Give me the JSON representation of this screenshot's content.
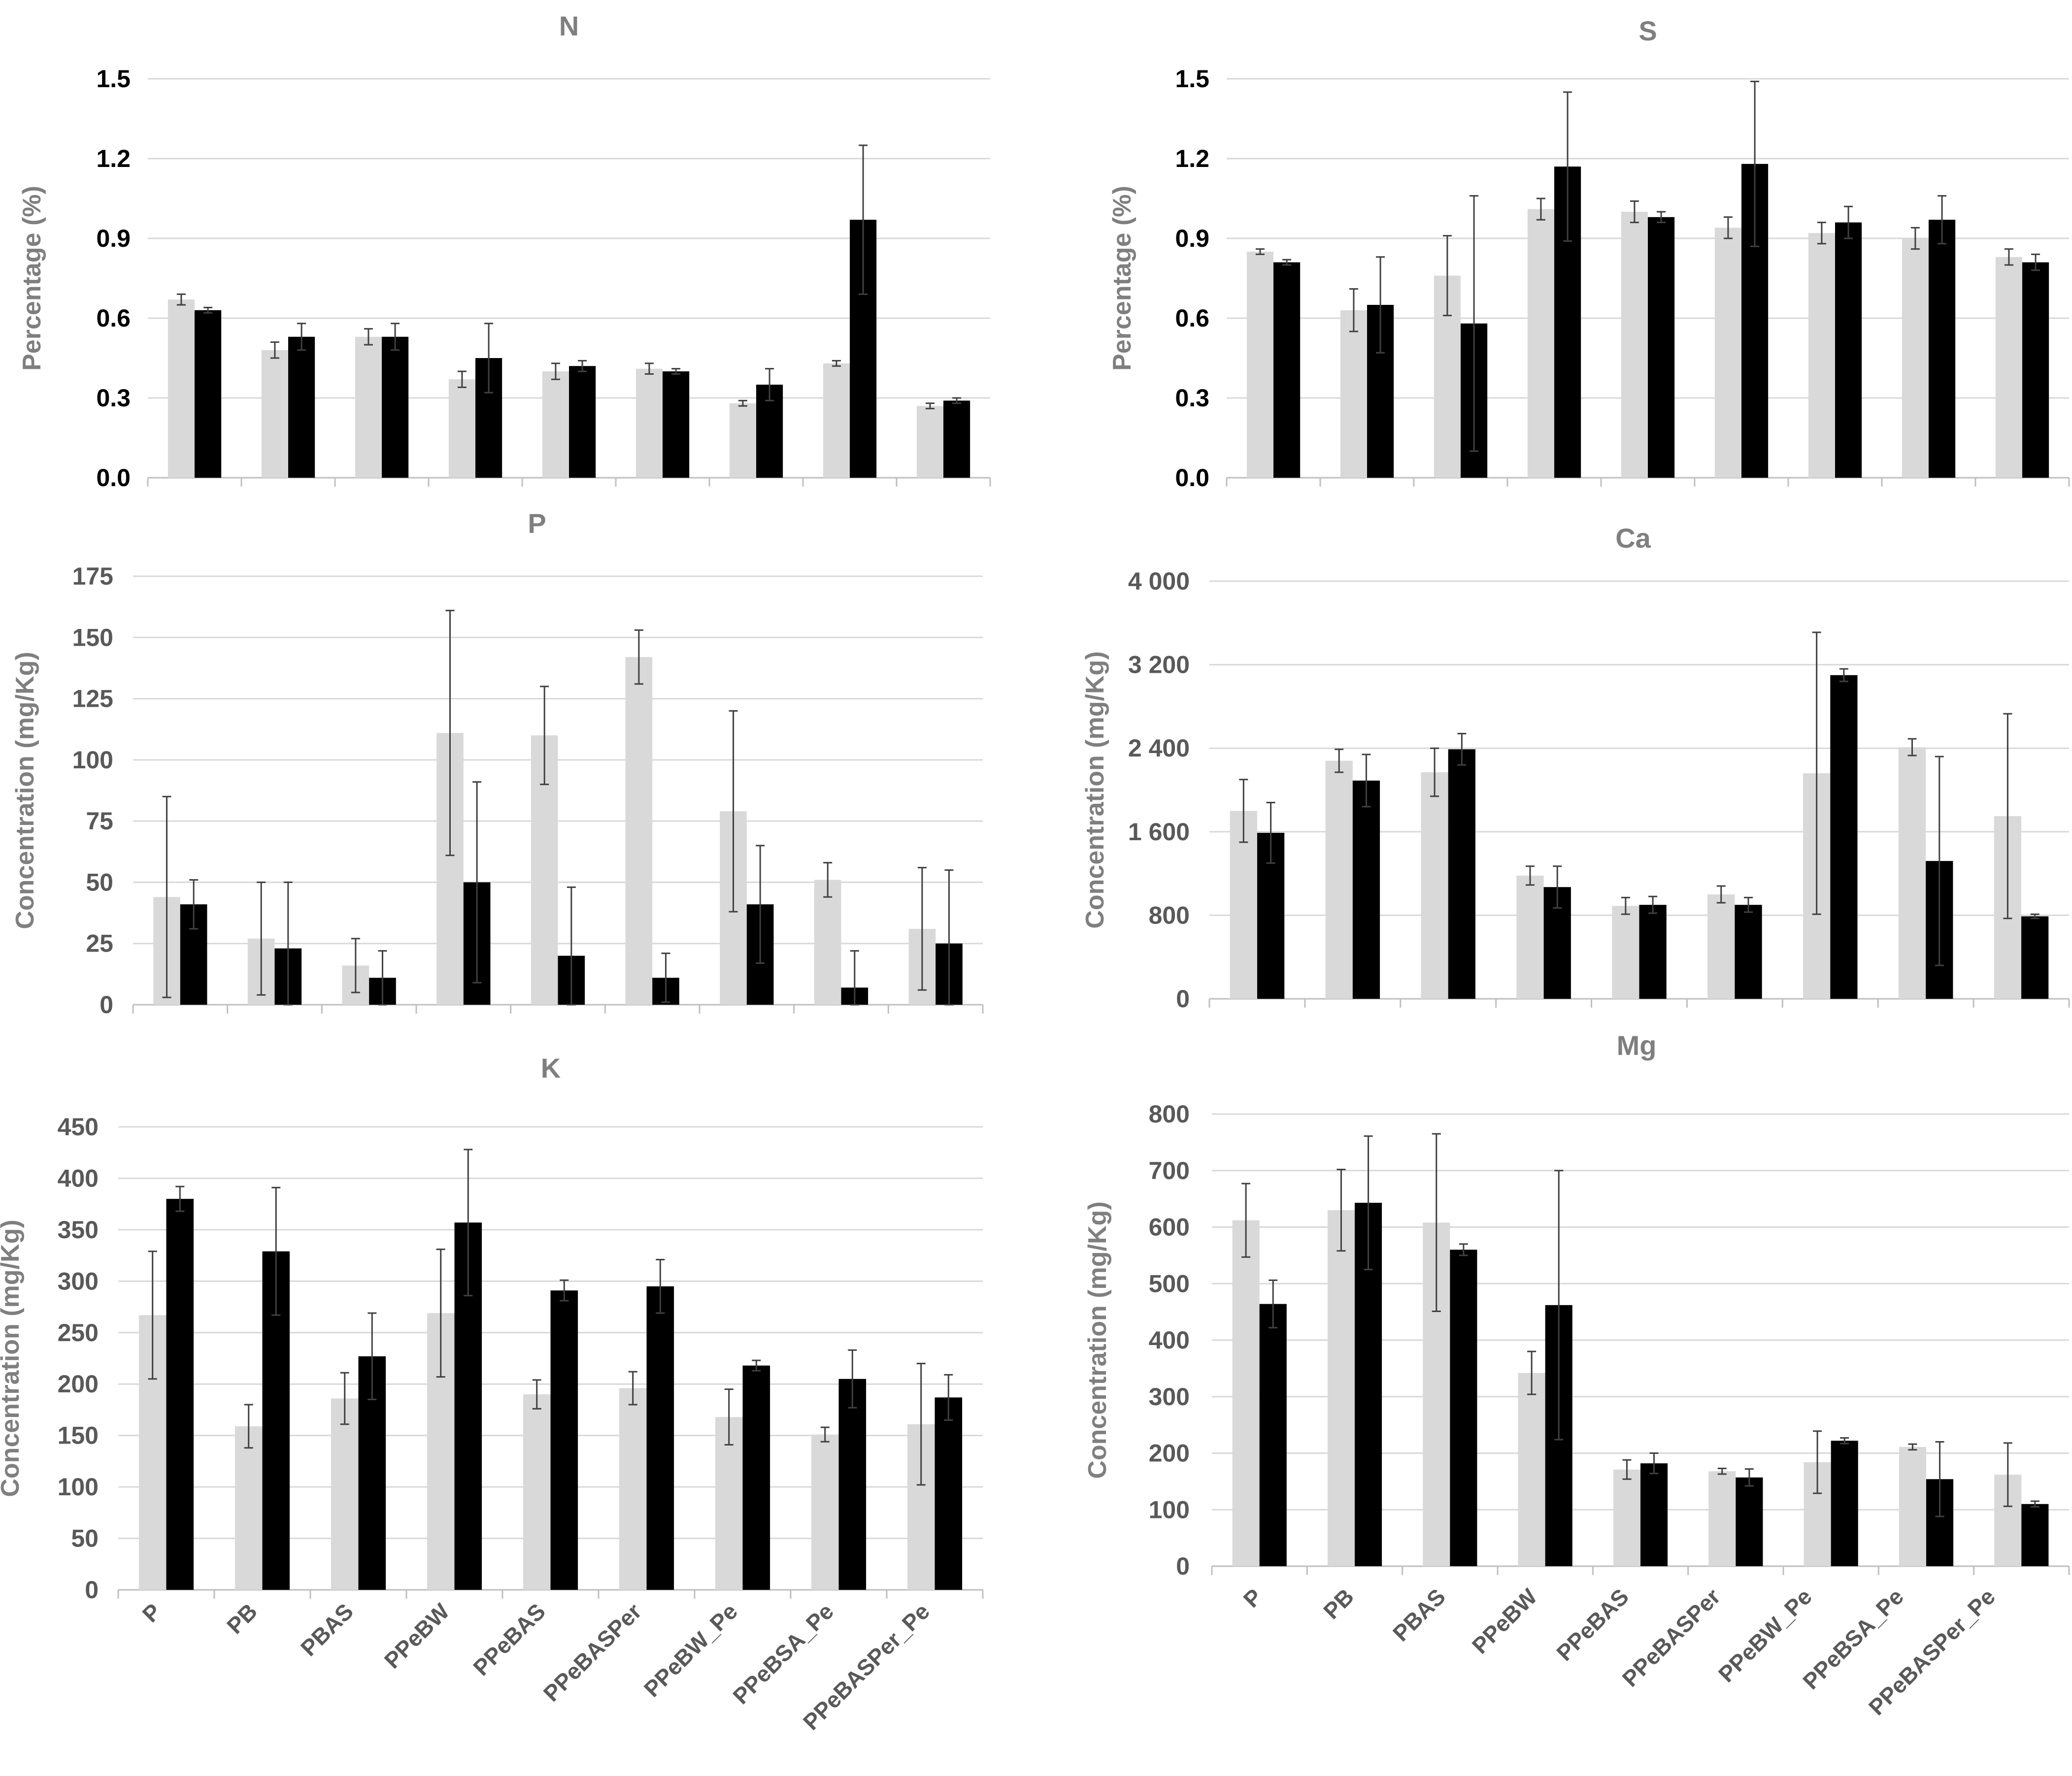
{
  "colors": {
    "series_a": "#d9d9d9",
    "series_b": "#000000",
    "grid": "#d9d9d9",
    "axis": "#bfbfbf",
    "error": "#404040",
    "text": "#7f7f7f",
    "category": "#595959"
  },
  "chart_data": [
    {
      "type": "bar",
      "title": "N",
      "ylabel": "Percentage (%)",
      "ylim": [
        0,
        1.5
      ],
      "yticks": [
        "0.0",
        "0.3",
        "0.6",
        "0.9",
        "1.2",
        "1.5"
      ],
      "tick_color": "#000000",
      "categories": [
        "P",
        "PB",
        "PBAS",
        "PPeBW",
        "PPeBAS",
        "PPeBASPer",
        "PPeBW_Pe",
        "PPeBSA_Pe",
        "PPeBASPer_Pe"
      ],
      "series": [
        {
          "values": [
            0.67,
            0.48,
            0.53,
            0.37,
            0.4,
            0.41,
            0.28,
            0.43,
            0.27
          ],
          "errors": [
            0.02,
            0.03,
            0.03,
            0.03,
            0.03,
            0.02,
            0.01,
            0.01,
            0.01
          ]
        },
        {
          "values": [
            0.63,
            0.53,
            0.53,
            0.45,
            0.42,
            0.4,
            0.35,
            0.97,
            0.29
          ],
          "errors": [
            0.01,
            0.05,
            0.05,
            0.13,
            0.02,
            0.01,
            0.06,
            0.28,
            0.01
          ]
        }
      ]
    },
    {
      "type": "bar",
      "title": "S",
      "ylabel": "Percentage (%)",
      "ylim": [
        0,
        1.5
      ],
      "yticks": [
        "0.0",
        "0.3",
        "0.6",
        "0.9",
        "1.2",
        "1.5"
      ],
      "tick_color": "#000000",
      "categories": [
        "P",
        "PB",
        "PBAS",
        "PPeBW",
        "PPeBAS",
        "PPeBASPer",
        "PPeBW_Pe",
        "PPeBSA_Pe",
        "PPeBASPer_Pe"
      ],
      "series": [
        {
          "values": [
            0.85,
            0.63,
            0.76,
            1.01,
            1.0,
            0.94,
            0.92,
            0.9,
            0.83
          ],
          "errors": [
            0.01,
            0.08,
            0.15,
            0.04,
            0.04,
            0.04,
            0.04,
            0.04,
            0.03
          ]
        },
        {
          "values": [
            0.81,
            0.65,
            0.58,
            1.17,
            0.98,
            1.18,
            0.96,
            0.97,
            0.81
          ],
          "errors": [
            0.01,
            0.18,
            0.48,
            0.28,
            0.02,
            0.31,
            0.06,
            0.09,
            0.03
          ]
        }
      ]
    },
    {
      "type": "bar",
      "title": "P",
      "ylabel": "Concentration (mg/Kg)",
      "ylim": [
        0,
        175
      ],
      "yticks": [
        "0",
        "25",
        "50",
        "75",
        "100",
        "125",
        "150",
        "175"
      ],
      "tick_color": "#595959",
      "categories": [
        "P",
        "PB",
        "PBAS",
        "PPeBW",
        "PPeBAS",
        "PPeBASPer",
        "PPeBW_Pe",
        "PPeBSA_Pe",
        "PPeBASPer_Pe"
      ],
      "series": [
        {
          "values": [
            44,
            27,
            16,
            111,
            110,
            142,
            79,
            51,
            31
          ],
          "errors": [
            41,
            23,
            11,
            50,
            20,
            11,
            41,
            7,
            25
          ]
        },
        {
          "values": [
            41,
            23,
            11,
            50,
            20,
            11,
            41,
            7,
            25
          ],
          "errors": [
            10,
            27,
            11,
            41,
            28,
            10,
            24,
            15,
            30
          ]
        }
      ]
    },
    {
      "type": "bar",
      "title": "Ca",
      "ylabel": "Concentration (mg/Kg)",
      "ylim": [
        0,
        4000
      ],
      "yticks": [
        "0",
        "800",
        "1 600",
        "2 400",
        "3 200",
        "4 000"
      ],
      "tick_color": "#595959",
      "categories": [
        "P",
        "PB",
        "PBAS",
        "PPeBW",
        "PPeBAS",
        "PPeBASPer",
        "PPeBW_Pe",
        "PPeBSA_Pe",
        "PPeBASPer_Pe"
      ],
      "series": [
        {
          "values": [
            1800,
            2280,
            2170,
            1180,
            890,
            1000,
            2160,
            2410,
            1750
          ],
          "errors": [
            300,
            110,
            230,
            90,
            80,
            80,
            1350,
            80,
            980
          ]
        },
        {
          "values": [
            1590,
            2090,
            2390,
            1070,
            900,
            900,
            3100,
            1320,
            790
          ],
          "errors": [
            290,
            250,
            150,
            200,
            80,
            70,
            60,
            1000,
            20
          ]
        }
      ]
    },
    {
      "type": "bar",
      "title": "K",
      "ylabel": "Concentration (mg/Kg)",
      "ylim": [
        0,
        450
      ],
      "yticks": [
        "0",
        "50",
        "100",
        "150",
        "200",
        "250",
        "300",
        "350",
        "400",
        "450"
      ],
      "tick_color": "#595959",
      "categories": [
        "P",
        "PB",
        "PBAS",
        "PPeBW",
        "PPeBAS",
        "PPeBASPer",
        "PPeBW_Pe",
        "PPeBSA_Pe",
        "PPeBASPer_Pe"
      ],
      "series": [
        {
          "values": [
            267,
            159,
            186,
            269,
            190,
            196,
            168,
            151,
            161
          ],
          "errors": [
            62,
            21,
            25,
            62,
            14,
            16,
            27,
            7,
            59
          ]
        },
        {
          "values": [
            380,
            329,
            227,
            357,
            291,
            295,
            218,
            205,
            187
          ],
          "errors": [
            12,
            62,
            42,
            71,
            10,
            26,
            5,
            28,
            22
          ]
        }
      ]
    },
    {
      "type": "bar",
      "title": "Mg",
      "ylabel": "Concentration (mg/Kg)",
      "ylim": [
        0,
        800
      ],
      "yticks": [
        "0",
        "100",
        "200",
        "300",
        "400",
        "500",
        "600",
        "700",
        "800"
      ],
      "tick_color": "#595959",
      "categories": [
        "P",
        "PB",
        "PBAS",
        "PPeBW",
        "PPeBAS",
        "PPeBASPer",
        "PPeBW_Pe",
        "PPeBSA_Pe",
        "PPeBASPer_Pe"
      ],
      "series": [
        {
          "values": [
            612,
            630,
            608,
            342,
            171,
            168,
            184,
            211,
            162
          ],
          "errors": [
            65,
            72,
            157,
            38,
            17,
            5,
            55,
            5,
            56
          ]
        },
        {
          "values": [
            464,
            643,
            560,
            462,
            182,
            157,
            222,
            154,
            110
          ],
          "errors": [
            42,
            118,
            10,
            238,
            18,
            15,
            5,
            66,
            5
          ]
        }
      ]
    }
  ]
}
